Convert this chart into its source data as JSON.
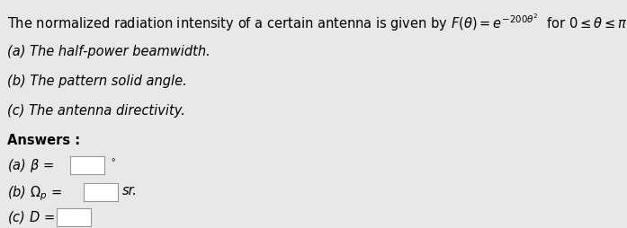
{
  "background_color": "#e8e8e8",
  "text_color": "#000000",
  "box_color": "#ffffff",
  "box_edge_color": "#999999",
  "title_line": "The normalized radiation intensity of a certain antenna is given by $F(\\theta) = e^{-200\\theta^2}$  for $0 \\leq \\theta \\leq \\pi$ where $\\theta$ is in radians. Determine:",
  "item_a": "(a) The half-power beamwidth.",
  "item_b": "(b) The pattern solid angle.",
  "item_c": "(c) The antenna directivity.",
  "answers_label": "Answers :",
  "ans_a_text": "(a) $\\beta$ =",
  "ans_a_suffix": "$^\\circ$",
  "ans_b_text": "(b) $\\Omega_p$ =",
  "ans_b_suffix": "sr.",
  "ans_c_text": "(c) $D$ =",
  "fs": 10.5
}
